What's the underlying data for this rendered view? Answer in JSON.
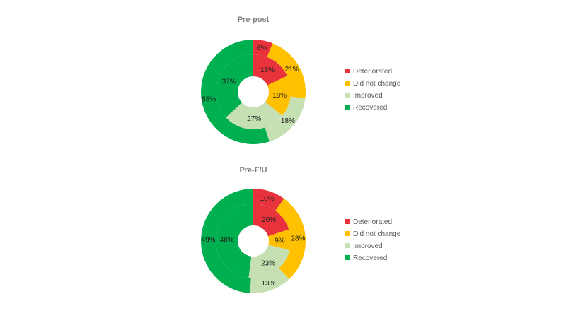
{
  "chart_data": [
    {
      "type": "pie",
      "subtype": "nested-donut",
      "title": "Pre-post",
      "categories": [
        "Deteriorated",
        "Did not change",
        "Improved",
        "Recovered"
      ],
      "colors": [
        "#e8323c",
        "#ffc000",
        "#c6e0b4",
        "#00b050"
      ],
      "series": [
        {
          "ring": "outer",
          "values": [
            6,
            21,
            18,
            55
          ],
          "labels": [
            "6%",
            "21%",
            "18%",
            "55%"
          ]
        },
        {
          "ring": "inner",
          "values": [
            18,
            18,
            27,
            37
          ],
          "labels": [
            "18%",
            "18%",
            "27%",
            "37%"
          ]
        }
      ],
      "legend_position": "right"
    },
    {
      "type": "pie",
      "subtype": "nested-donut",
      "title": "Pre-F/U",
      "categories": [
        "Deteriorated",
        "Did not change",
        "Improved",
        "Recovered"
      ],
      "colors": [
        "#e8323c",
        "#ffc000",
        "#c6e0b4",
        "#00b050"
      ],
      "series": [
        {
          "ring": "outer",
          "values": [
            10,
            28,
            13,
            49
          ],
          "labels": [
            "10%",
            "28%",
            "13%",
            "49%"
          ]
        },
        {
          "ring": "inner",
          "values": [
            20,
            9,
            23,
            48
          ],
          "labels": [
            "20%",
            "9%",
            "23%",
            "48%"
          ]
        }
      ],
      "legend_position": "right"
    }
  ]
}
